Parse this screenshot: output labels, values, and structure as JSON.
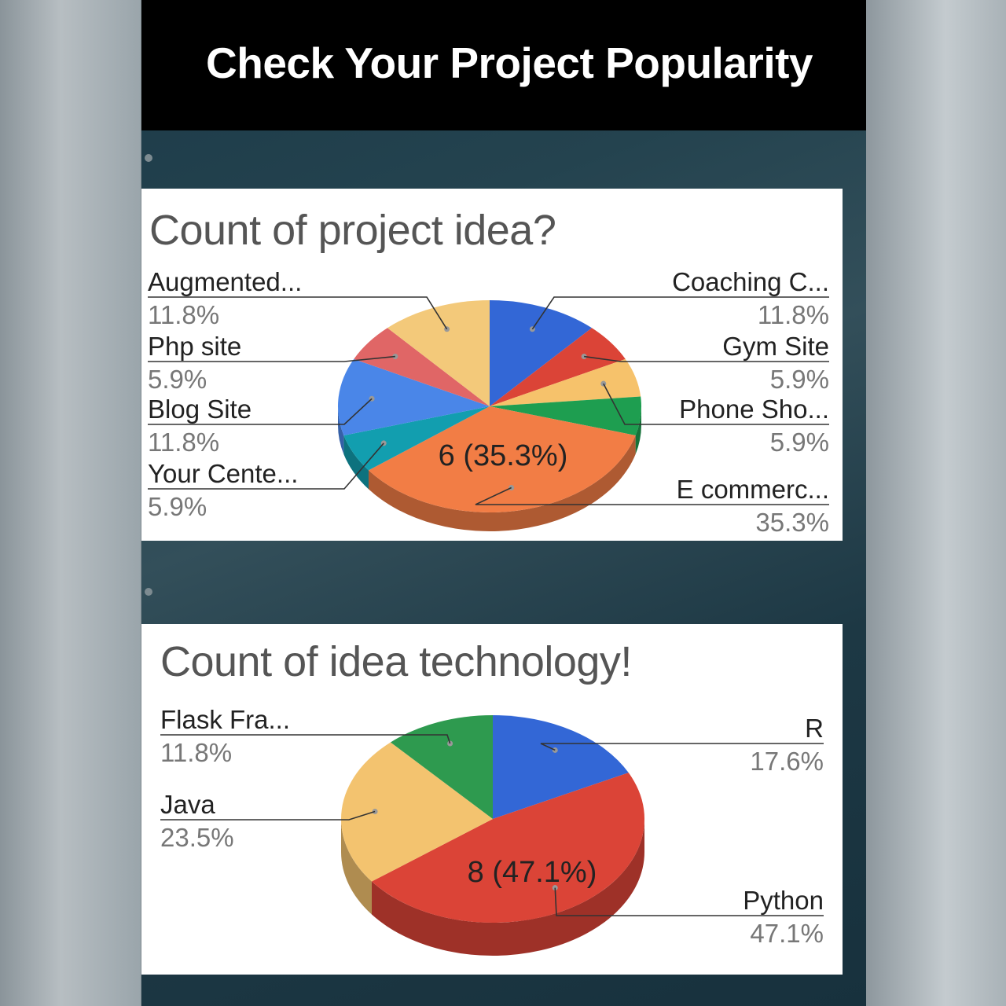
{
  "header": {
    "title": "Check Your Project Popularity"
  },
  "colors": {
    "blue": "#3367d6",
    "red": "#db4437",
    "yellow": "#f0c36d",
    "green": "#0f9d58",
    "teal": "#129eaf",
    "orange": "#f27d45",
    "blog_blue": "#4a86e8",
    "header_bg": "#000000",
    "card_bg": "#ffffff"
  },
  "chart_data": [
    {
      "type": "pie",
      "title": "Count of project idea?",
      "center_label": "6 (35.3%)",
      "slices": [
        {
          "label": "Coaching C...",
          "percent": "11.8%",
          "value": 2,
          "color": "#3367d6"
        },
        {
          "label": "Gym Site",
          "percent": "5.9%",
          "value": 1,
          "color": "#db4437"
        },
        {
          "label": "Phone Sho...",
          "percent": "5.9%",
          "value": 1,
          "color": "#f6c26b"
        },
        {
          "label": "",
          "percent": "",
          "value": 1,
          "color": "#1e9e50"
        },
        {
          "label": "E commerc...",
          "percent": "35.3%",
          "value": 6,
          "color": "#f27d45"
        },
        {
          "label": "Your Cente...",
          "percent": "5.9%",
          "value": 1,
          "color": "#129eaf"
        },
        {
          "label": "Blog Site",
          "percent": "11.8%",
          "value": 2,
          "color": "#4a86e8"
        },
        {
          "label": "Php site",
          "percent": "5.9%",
          "value": 1,
          "color": "#e06666"
        },
        {
          "label": "Augmented...",
          "percent": "11.8%",
          "value": 2,
          "color": "#f3c97a"
        }
      ]
    },
    {
      "type": "pie",
      "title": "Count of idea technology!",
      "center_label": "8 (47.1%)",
      "slices": [
        {
          "label": "R",
          "percent": "17.6%",
          "value": 3,
          "color": "#3367d6"
        },
        {
          "label": "Python",
          "percent": "47.1%",
          "value": 8,
          "color": "#db4437"
        },
        {
          "label": "Java",
          "percent": "23.5%",
          "value": 4,
          "color": "#f3c36f"
        },
        {
          "label": "Flask Fra...",
          "percent": "11.8%",
          "value": 2,
          "color": "#2e9a4f"
        }
      ]
    }
  ]
}
